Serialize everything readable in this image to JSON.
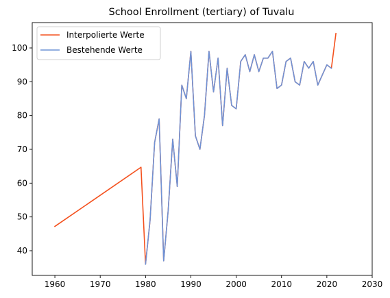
{
  "chart_data": {
    "type": "line",
    "title": "School Enrollment (tertiary) of Tuvalu",
    "xlabel": "",
    "ylabel": "",
    "xlim": [
      1955,
      2030
    ],
    "ylim": [
      32.7,
      107.5
    ],
    "xticks": [
      1960,
      1970,
      1980,
      1990,
      2000,
      2010,
      2020,
      2030
    ],
    "yticks": [
      40,
      50,
      60,
      70,
      80,
      90,
      100
    ],
    "grid": false,
    "legend_position": "top-left",
    "series": [
      {
        "name": "Interpolierte Werte",
        "color": "#f4511e",
        "points": [
          [
            1960,
            47.2
          ],
          [
            1979,
            64.7
          ],
          [
            1980,
            36.0
          ],
          [
            1981,
            49.0
          ],
          [
            1982,
            72.0
          ],
          [
            1983,
            79.0
          ],
          [
            1984,
            37.0
          ],
          [
            1985,
            52.0
          ],
          [
            1986,
            73.0
          ],
          [
            1987,
            59.0
          ],
          [
            1988,
            89.0
          ],
          [
            1989,
            85.0
          ],
          [
            1990,
            99.0
          ],
          [
            1991,
            74.0
          ],
          [
            1992,
            70.0
          ],
          [
            1993,
            80.0
          ],
          [
            1994,
            99.0
          ],
          [
            1995,
            87.0
          ],
          [
            1996,
            97.0
          ],
          [
            1997,
            77.0
          ],
          [
            1998,
            94.0
          ],
          [
            1999,
            83.0
          ],
          [
            2000,
            82.0
          ],
          [
            2001,
            96.0
          ],
          [
            2002,
            98.0
          ],
          [
            2003,
            93.0
          ],
          [
            2004,
            98.0
          ],
          [
            2005,
            93.0
          ],
          [
            2006,
            97.0
          ],
          [
            2007,
            97.0
          ],
          [
            2008,
            99.0
          ],
          [
            2009,
            88.0
          ],
          [
            2010,
            89.0
          ],
          [
            2011,
            96.0
          ],
          [
            2012,
            97.0
          ],
          [
            2013,
            90.0
          ],
          [
            2014,
            89.0
          ],
          [
            2015,
            96.0
          ],
          [
            2016,
            94.0
          ],
          [
            2017,
            96.0
          ],
          [
            2018,
            89.0
          ],
          [
            2019,
            92.0
          ],
          [
            2020,
            95.0
          ],
          [
            2021,
            94.0
          ],
          [
            2022,
            104.3
          ]
        ]
      },
      {
        "name": "Bestehende Werte",
        "color": "#6f93d6",
        "points": [
          [
            1980,
            36.0
          ],
          [
            1981,
            49.0
          ],
          [
            1982,
            72.0
          ],
          [
            1983,
            79.0
          ],
          [
            1984,
            37.0
          ],
          [
            1985,
            52.0
          ],
          [
            1986,
            73.0
          ],
          [
            1987,
            59.0
          ],
          [
            1988,
            89.0
          ],
          [
            1989,
            85.0
          ],
          [
            1990,
            99.0
          ],
          [
            1991,
            74.0
          ],
          [
            1992,
            70.0
          ],
          [
            1993,
            80.0
          ],
          [
            1994,
            99.0
          ],
          [
            1995,
            87.0
          ],
          [
            1996,
            97.0
          ],
          [
            1997,
            77.0
          ],
          [
            1998,
            94.0
          ],
          [
            1999,
            83.0
          ],
          [
            2000,
            82.0
          ],
          [
            2001,
            96.0
          ],
          [
            2002,
            98.0
          ],
          [
            2003,
            93.0
          ],
          [
            2004,
            98.0
          ],
          [
            2005,
            93.0
          ],
          [
            2006,
            97.0
          ],
          [
            2007,
            97.0
          ],
          [
            2008,
            99.0
          ],
          [
            2009,
            88.0
          ],
          [
            2010,
            89.0
          ],
          [
            2011,
            96.0
          ],
          [
            2012,
            97.0
          ],
          [
            2013,
            90.0
          ],
          [
            2014,
            89.0
          ],
          [
            2015,
            96.0
          ],
          [
            2016,
            94.0
          ],
          [
            2017,
            96.0
          ],
          [
            2018,
            89.0
          ],
          [
            2019,
            92.0
          ],
          [
            2020,
            95.0
          ],
          [
            2021,
            94.0
          ]
        ]
      }
    ]
  }
}
